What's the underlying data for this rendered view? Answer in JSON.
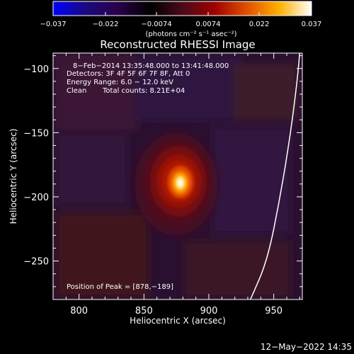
{
  "chart_data": {
    "type": "heatmap",
    "title": "Reconstructed RHESSI Image",
    "xlabel": "Heliocentric X (arcsec)",
    "ylabel": "Heliocentric Y (arcsec)",
    "xlim": [
      780,
      972
    ],
    "ylim": [
      -280,
      -88
    ],
    "x_ticks": [
      800,
      850,
      900,
      950
    ],
    "y_ticks": [
      -100,
      -150,
      -200,
      -250
    ],
    "grid": false,
    "colorbar": {
      "position": "top",
      "min": -0.037,
      "max": 0.037,
      "ticks": [
        -0.037,
        -0.022,
        -0.0074,
        0.0074,
        0.022,
        0.037
      ],
      "tick_labels": [
        "−0.037",
        "−0.022",
        "−0.0074",
        "0.0074",
        "0.022",
        "0.037"
      ],
      "units_label": "(photons cm⁻² s⁻¹ asec⁻²)",
      "colormap_stops": [
        "#0000ff",
        "#1a0a80",
        "#2a004a",
        "#000000",
        "#4a0a1a",
        "#a00000",
        "#e05000",
        "#ffb000",
        "#ffffff"
      ]
    },
    "annotations": {
      "time_range": "8−Feb−2014 13:35:48.000 to 13:41:48.000",
      "detectors": "Detectors: 3F 4F 5F 6F 7F 8F, Att 0",
      "energy_range": "Energy Range: 6.0 − 12.0 keV",
      "method": "Clean",
      "total_counts": "Total counts: 8.21E+04",
      "peak": "Position of Peak = [878,−189]"
    },
    "source": {
      "peak_x": 878,
      "peak_y": -189,
      "peak_value": 0.037
    },
    "limb": {
      "points": [
        [
          932,
          -280
        ],
        [
          945,
          -250
        ],
        [
          955,
          -200
        ],
        [
          963,
          -150
        ],
        [
          968,
          -110
        ],
        [
          970,
          -88
        ]
      ]
    }
  },
  "footer": {
    "timestamp": "12−May−2022 14:35"
  }
}
